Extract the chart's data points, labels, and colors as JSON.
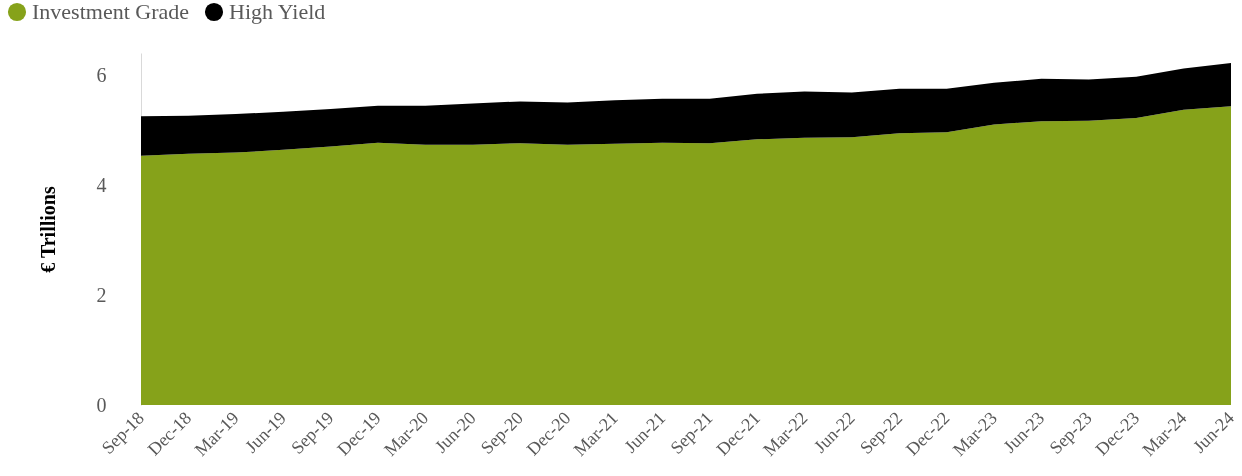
{
  "chart_data": {
    "type": "area",
    "stacked": true,
    "ylabel": "€ Trillions",
    "categories": [
      "Sep-18",
      "Dec-18",
      "Mar-19",
      "Jun-19",
      "Sep-19",
      "Dec-19",
      "Mar-20",
      "Jun-20",
      "Sep-20",
      "Dec-20",
      "Mar-21",
      "Jun-21",
      "Sep-21",
      "Dec-21",
      "Mar-22",
      "Jun-22",
      "Sep-22",
      "Dec-22",
      "Mar-23",
      "Jun-23",
      "Sep-23",
      "Dec-23",
      "Mar-24",
      "Jun-24"
    ],
    "series": [
      {
        "name": "Investment Grade",
        "color": "#86a21a",
        "values": [
          4.53,
          4.57,
          4.59,
          4.64,
          4.7,
          4.77,
          4.73,
          4.73,
          4.76,
          4.73,
          4.75,
          4.77,
          4.76,
          4.83,
          4.86,
          4.87,
          4.94,
          4.96,
          5.1,
          5.16,
          5.17,
          5.22,
          5.37,
          5.43
        ]
      },
      {
        "name": "High Yield",
        "color": "#000000",
        "values": [
          0.72,
          0.69,
          0.7,
          0.69,
          0.68,
          0.67,
          0.71,
          0.75,
          0.76,
          0.77,
          0.79,
          0.8,
          0.81,
          0.83,
          0.84,
          0.81,
          0.81,
          0.79,
          0.76,
          0.77,
          0.75,
          0.75,
          0.75,
          0.79
        ]
      }
    ],
    "ylim": [
      0,
      6.4
    ],
    "yticks": [
      0,
      2,
      4,
      6
    ],
    "grid": false,
    "legend": "top left"
  }
}
